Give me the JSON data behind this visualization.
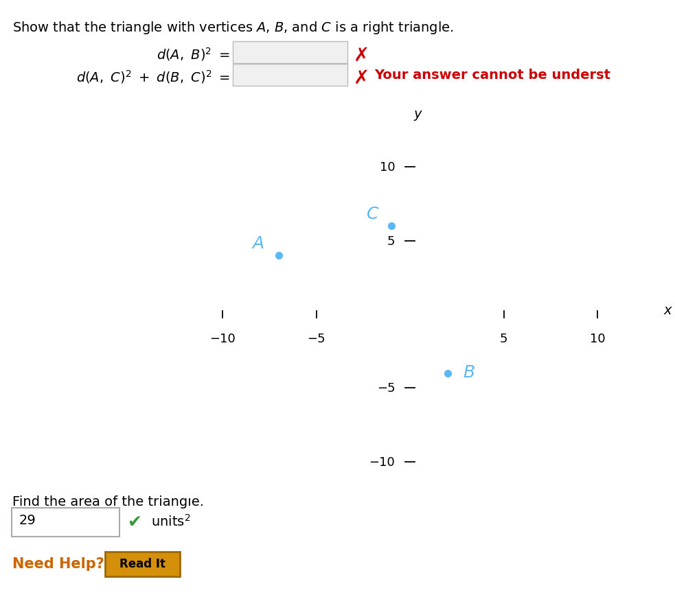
{
  "point_A": [
    -7,
    4
  ],
  "point_B": [
    2,
    -4
  ],
  "point_C": [
    -1,
    6
  ],
  "point_color": "#5BB8F5",
  "label_color": "#5BB8F5",
  "background_color": "#ffffff",
  "xlim": [
    -12.5,
    12.5
  ],
  "ylim": [
    -12.5,
    12.5
  ],
  "xticks": [
    -10,
    -5,
    5,
    10
  ],
  "yticks": [
    -10,
    -5,
    5,
    10
  ],
  "cross_color": "#cc0000",
  "error_text": "Your answer cannot be underst",
  "area_answer": "29",
  "need_help_color": "#cc6600",
  "read_it_bg": "#d4900a",
  "read_it_border": "#9a6800",
  "checkmark_color": "#339933",
  "tick_fontsize": 13,
  "point_label_fontsize": 18,
  "text_fontsize": 14,
  "eq_fontsize": 14,
  "input_box_fill": "#f0f0f0",
  "input_box_edge": "#bbbbbb",
  "area_box_fill": "#ffffff",
  "area_box_edge": "#aaaaaa"
}
